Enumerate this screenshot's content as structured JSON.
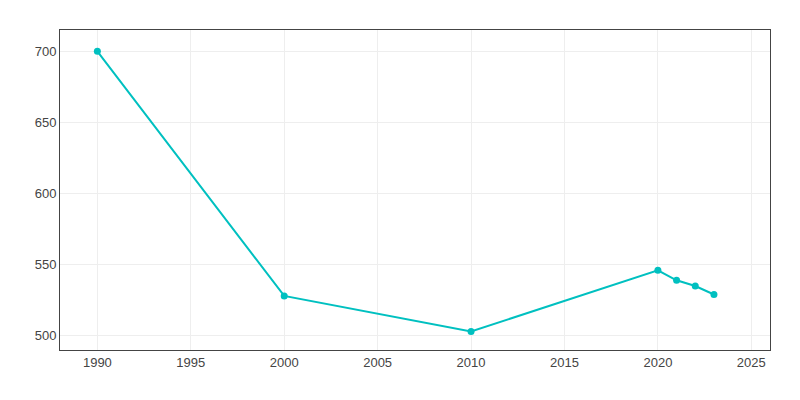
{
  "chart_data": {
    "type": "line",
    "x": [
      1990,
      2000,
      2010,
      2020,
      2021,
      2022,
      2023
    ],
    "values": [
      700,
      528,
      503,
      546,
      539,
      535,
      529
    ],
    "color": "#00C0C0",
    "marker": "circle",
    "line_style": "solid",
    "xlim": [
      1988,
      2026
    ],
    "ylim": [
      490,
      715
    ],
    "xticks": [
      1990,
      1995,
      2000,
      2005,
      2010,
      2015,
      2020,
      2025
    ],
    "yticks": [
      500,
      550,
      600,
      650,
      700
    ],
    "grid": true
  }
}
